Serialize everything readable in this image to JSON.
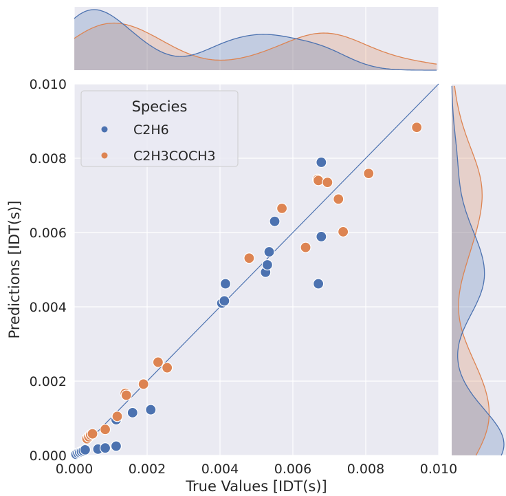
{
  "chart_data": {
    "type": "scatter",
    "xlabel": "True Values [IDT(s)]",
    "ylabel": "Predictions [IDT(s)]",
    "xlim": [
      0,
      0.01
    ],
    "ylim": [
      0,
      0.01
    ],
    "x_ticks": [
      "0.000",
      "0.002",
      "0.004",
      "0.006",
      "0.008",
      "0.010"
    ],
    "y_ticks": [
      "0.000",
      "0.002",
      "0.004",
      "0.006",
      "0.008",
      "0.010"
    ],
    "grid": true,
    "legend": {
      "title": "Species",
      "placement": "top-left"
    },
    "reference_line": {
      "from": [
        0,
        0
      ],
      "to": [
        0.01,
        0.01
      ],
      "color": "#4c72b0"
    },
    "marginal_kde": {
      "top": true,
      "right": true
    },
    "series": [
      {
        "name": "C2H6",
        "color": "#4c72b0",
        "points": [
          [
            5e-05,
            3e-05
          ],
          [
            0.0001,
            6e-05
          ],
          [
            0.00015,
            8e-05
          ],
          [
            0.0002,
            0.0001
          ],
          [
            0.00025,
            0.00012
          ],
          [
            0.0003,
            0.00015
          ],
          [
            0.00065,
            0.00017
          ],
          [
            0.00085,
            0.0002
          ],
          [
            0.00115,
            0.00025
          ],
          [
            0.00115,
            0.00096
          ],
          [
            0.0016,
            0.00115
          ],
          [
            0.0021,
            0.00123
          ],
          [
            0.00405,
            0.0041
          ],
          [
            0.00412,
            0.00416
          ],
          [
            0.00415,
            0.00462
          ],
          [
            0.00525,
            0.00493
          ],
          [
            0.0053,
            0.00513
          ],
          [
            0.00535,
            0.00548
          ],
          [
            0.0055,
            0.0063
          ],
          [
            0.0067,
            0.00462
          ],
          [
            0.00678,
            0.00589
          ],
          [
            0.00678,
            0.00789
          ]
        ]
      },
      {
        "name": "C2H3COCH3",
        "color": "#dd8452",
        "points": [
          [
            0.00035,
            0.00045
          ],
          [
            0.0004,
            0.0005
          ],
          [
            0.00045,
            0.00055
          ],
          [
            0.0005,
            0.00058
          ],
          [
            0.00085,
            0.0007
          ],
          [
            0.00118,
            0.00105
          ],
          [
            0.0014,
            0.00167
          ],
          [
            0.00143,
            0.00162
          ],
          [
            0.0019,
            0.00192
          ],
          [
            0.0023,
            0.00251
          ],
          [
            0.00255,
            0.00236
          ],
          [
            0.0048,
            0.00531
          ],
          [
            0.0057,
            0.00665
          ],
          [
            0.00635,
            0.0056
          ],
          [
            0.00668,
            0.00743
          ],
          [
            0.0067,
            0.0074
          ],
          [
            0.00695,
            0.00735
          ],
          [
            0.00725,
            0.0069
          ],
          [
            0.00738,
            0.00602
          ],
          [
            0.00808,
            0.00759
          ],
          [
            0.0094,
            0.00883
          ]
        ]
      }
    ]
  }
}
